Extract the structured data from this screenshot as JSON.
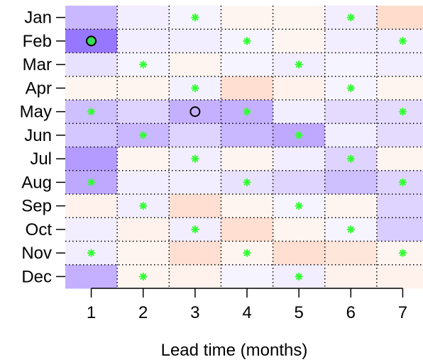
{
  "chart_data": {
    "type": "heatmap",
    "title": "",
    "xlabel": "Lead time (months)",
    "ylabel": "",
    "x": [
      1,
      2,
      3,
      4,
      5,
      6,
      7
    ],
    "y": [
      "Jan",
      "Feb",
      "Mar",
      "Apr",
      "May",
      "Jun",
      "Jul",
      "Aug",
      "Sep",
      "Oct",
      "Nov",
      "Dec"
    ],
    "grid": true,
    "grid_style": "dotted",
    "colors": {
      "negative_high": "#9370ff",
      "neutral": "#ffffff",
      "positive_high": "#ffd9c8",
      "significance_marker": "#33ff33",
      "circle_fill": "#33dd55",
      "circle_stroke": "#000000"
    },
    "values": [
      [
        -0.5,
        -0.12,
        -0.08,
        0.08,
        0.08,
        -0.12,
        0.28
      ],
      [
        -0.95,
        -0.12,
        -0.12,
        -0.08,
        0.08,
        -0.12,
        -0.12
      ],
      [
        -0.2,
        -0.08,
        0.08,
        -0.08,
        -0.12,
        -0.08,
        -0.12
      ],
      [
        0.08,
        0.08,
        -0.1,
        0.25,
        0.1,
        -0.08,
        0.08
      ],
      [
        -0.45,
        -0.3,
        -0.55,
        -0.55,
        -0.12,
        -0.25,
        -0.25
      ],
      [
        -0.4,
        -0.5,
        -0.3,
        -0.5,
        -0.6,
        -0.12,
        -0.25
      ],
      [
        -0.7,
        0.08,
        -0.12,
        0.08,
        -0.12,
        -0.3,
        0.08
      ],
      [
        -0.6,
        -0.12,
        -0.12,
        -0.2,
        -0.3,
        -0.45,
        -0.3
      ],
      [
        0.1,
        -0.12,
        0.25,
        0.08,
        -0.08,
        0.08,
        -0.3
      ],
      [
        -0.12,
        0.1,
        -0.12,
        0.25,
        0.08,
        -0.08,
        -0.35
      ],
      [
        -0.12,
        0.08,
        0.25,
        0.08,
        0.25,
        0.2,
        0.08
      ],
      [
        -0.55,
        0.08,
        0.1,
        -0.08,
        -0.12,
        0.1,
        0.1
      ]
    ],
    "stars": [
      [
        0,
        2
      ],
      [
        0,
        5
      ],
      [
        1,
        3
      ],
      [
        1,
        6
      ],
      [
        2,
        1
      ],
      [
        2,
        4
      ],
      [
        3,
        2
      ],
      [
        3,
        5
      ],
      [
        4,
        0
      ],
      [
        4,
        3
      ],
      [
        4,
        6
      ],
      [
        5,
        1
      ],
      [
        5,
        4
      ],
      [
        6,
        2
      ],
      [
        6,
        5
      ],
      [
        7,
        0
      ],
      [
        7,
        3
      ],
      [
        7,
        6
      ],
      [
        8,
        1
      ],
      [
        8,
        4
      ],
      [
        9,
        2
      ],
      [
        9,
        5
      ],
      [
        10,
        0
      ],
      [
        10,
        3
      ],
      [
        10,
        6
      ],
      [
        11,
        1
      ],
      [
        11,
        4
      ]
    ],
    "circles": [
      {
        "row": 1,
        "col": 0,
        "filled": true
      },
      {
        "row": 4,
        "col": 2,
        "filled": false
      }
    ]
  }
}
